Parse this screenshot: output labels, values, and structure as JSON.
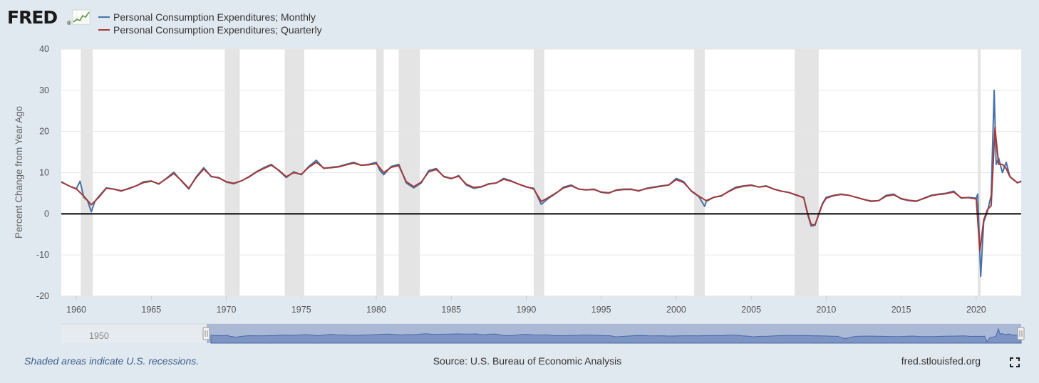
{
  "header": {
    "logo": "FRED",
    "logo_mark": "®"
  },
  "chart_data": {
    "type": "line",
    "ylabel": "Percent Change from Year Ago",
    "ylim": [
      -20,
      40
    ],
    "yticks": [
      -20,
      -10,
      0,
      10,
      20,
      30,
      40
    ],
    "xlim": [
      1959.0,
      2023.0
    ],
    "xticks": [
      1960,
      1965,
      1970,
      1975,
      1980,
      1985,
      1990,
      1995,
      2000,
      2005,
      2010,
      2015,
      2020
    ],
    "zero_line": true,
    "grid": "horizontal",
    "legend_position": "top-left",
    "recessions": [
      [
        1960.3,
        1961.1
      ],
      [
        1969.9,
        1970.9
      ],
      [
        1973.9,
        1975.2
      ],
      [
        1980.0,
        1980.5
      ],
      [
        1981.5,
        1982.9
      ],
      [
        1990.5,
        1991.2
      ],
      [
        2001.2,
        2001.9
      ],
      [
        2007.9,
        2009.5
      ],
      [
        2020.1,
        2020.3
      ]
    ],
    "series": [
      {
        "name": "Personal Consumption Expenditures; Monthly",
        "color": "#4572a7",
        "x": [
          1959.0,
          1959.5,
          1960.0,
          1960.25,
          1960.5,
          1960.75,
          1961.0,
          1961.25,
          1961.5,
          1962.0,
          1962.5,
          1963.0,
          1963.5,
          1964.0,
          1964.5,
          1965.0,
          1965.5,
          1966.0,
          1966.5,
          1967.0,
          1967.5,
          1968.0,
          1968.5,
          1969.0,
          1969.5,
          1970.0,
          1970.5,
          1971.0,
          1971.5,
          1972.0,
          1972.5,
          1973.0,
          1973.5,
          1974.0,
          1974.5,
          1975.0,
          1975.5,
          1976.0,
          1976.5,
          1977.0,
          1977.5,
          1978.0,
          1978.5,
          1979.0,
          1979.5,
          1980.0,
          1980.25,
          1980.5,
          1981.0,
          1981.5,
          1982.0,
          1982.5,
          1983.0,
          1983.5,
          1984.0,
          1984.5,
          1985.0,
          1985.5,
          1986.0,
          1986.5,
          1987.0,
          1987.5,
          1988.0,
          1988.5,
          1989.0,
          1989.5,
          1990.0,
          1990.5,
          1991.0,
          1991.5,
          1992.0,
          1992.5,
          1993.0,
          1993.5,
          1994.0,
          1994.5,
          1995.0,
          1995.5,
          1996.0,
          1996.5,
          1997.0,
          1997.5,
          1998.0,
          1998.5,
          1999.0,
          1999.5,
          2000.0,
          2000.5,
          2001.0,
          2001.5,
          2001.9,
          2002.0,
          2002.5,
          2003.0,
          2003.5,
          2004.0,
          2004.5,
          2005.0,
          2005.5,
          2006.0,
          2006.5,
          2007.0,
          2007.5,
          2008.0,
          2008.5,
          2008.75,
          2009.0,
          2009.25,
          2009.5,
          2009.75,
          2010.0,
          2010.5,
          2011.0,
          2011.5,
          2012.0,
          2012.5,
          2013.0,
          2013.5,
          2014.0,
          2014.5,
          2015.0,
          2015.5,
          2016.0,
          2016.5,
          2017.0,
          2017.5,
          2018.0,
          2018.5,
          2019.0,
          2019.5,
          2020.0,
          2020.1,
          2020.3,
          2020.5,
          2020.75,
          2021.0,
          2021.2,
          2021.33,
          2021.5,
          2021.75,
          2022.0,
          2022.25,
          2022.5,
          2022.75,
          2023.0
        ],
        "values": [
          7.8,
          6.8,
          6.0,
          7.9,
          4.0,
          3.2,
          0.5,
          3.1,
          4.2,
          6.3,
          6.0,
          5.5,
          6.2,
          6.8,
          7.8,
          8.0,
          7.2,
          8.6,
          10.1,
          8.0,
          6.0,
          9.0,
          11.2,
          9.0,
          8.8,
          7.7,
          7.3,
          8.0,
          9.0,
          10.2,
          11.2,
          12.0,
          10.5,
          8.8,
          10.2,
          9.5,
          11.5,
          13.0,
          11.0,
          11.3,
          11.5,
          12.0,
          12.5,
          11.8,
          12.0,
          12.5,
          10.5,
          9.5,
          11.5,
          12.0,
          7.5,
          6.3,
          7.5,
          10.5,
          11.0,
          9.0,
          8.5,
          9.3,
          7.0,
          6.2,
          6.5,
          7.3,
          7.5,
          8.6,
          8.0,
          7.2,
          6.5,
          6.2,
          2.3,
          3.8,
          5.0,
          6.5,
          7.0,
          6.0,
          5.8,
          6.0,
          5.2,
          5.0,
          5.8,
          6.0,
          6.0,
          5.5,
          6.2,
          6.5,
          6.8,
          7.0,
          8.6,
          7.8,
          5.5,
          4.2,
          1.8,
          3.0,
          4.0,
          4.3,
          5.5,
          6.5,
          6.8,
          7.0,
          6.5,
          6.8,
          6.0,
          5.5,
          5.2,
          4.5,
          4.0,
          0.0,
          -3.0,
          -2.8,
          0.0,
          2.5,
          4.0,
          4.5,
          4.8,
          4.5,
          4.0,
          3.5,
          3.0,
          3.2,
          4.5,
          4.8,
          3.6,
          3.2,
          3.0,
          3.8,
          4.5,
          4.8,
          5.0,
          5.5,
          3.8,
          4.0,
          3.8,
          4.8,
          -15.2,
          -2.0,
          0.5,
          4.5,
          30.0,
          12.0,
          13.5,
          10.0,
          12.5,
          9.0,
          8.3,
          7.5,
          8.0
        ]
      },
      {
        "name": "Personal Consumption Expenditures; Quarterly",
        "color": "#a33a3a",
        "x": [
          1959.0,
          1959.5,
          1960.0,
          1960.5,
          1961.0,
          1961.5,
          1962.0,
          1962.5,
          1963.0,
          1963.5,
          1964.0,
          1964.5,
          1965.0,
          1965.5,
          1966.0,
          1966.5,
          1967.0,
          1967.5,
          1968.0,
          1968.5,
          1969.0,
          1969.5,
          1970.0,
          1970.5,
          1971.0,
          1971.5,
          1972.0,
          1972.5,
          1973.0,
          1973.5,
          1974.0,
          1974.5,
          1975.0,
          1975.5,
          1976.0,
          1976.5,
          1977.0,
          1977.5,
          1978.0,
          1978.5,
          1979.0,
          1979.5,
          1980.0,
          1980.5,
          1981.0,
          1981.5,
          1982.0,
          1982.5,
          1983.0,
          1983.5,
          1984.0,
          1984.5,
          1985.0,
          1985.5,
          1986.0,
          1986.5,
          1987.0,
          1987.5,
          1988.0,
          1988.5,
          1989.0,
          1989.5,
          1990.0,
          1990.5,
          1991.0,
          1991.5,
          1992.0,
          1992.5,
          1993.0,
          1993.5,
          1994.0,
          1994.5,
          1995.0,
          1995.5,
          1996.0,
          1996.5,
          1997.0,
          1997.5,
          1998.0,
          1998.5,
          1999.0,
          1999.5,
          2000.0,
          2000.5,
          2001.0,
          2001.5,
          2002.0,
          2002.5,
          2003.0,
          2003.5,
          2004.0,
          2004.5,
          2005.0,
          2005.5,
          2006.0,
          2006.5,
          2007.0,
          2007.5,
          2008.0,
          2008.5,
          2008.75,
          2009.0,
          2009.25,
          2009.5,
          2009.75,
          2010.0,
          2010.5,
          2011.0,
          2011.5,
          2012.0,
          2012.5,
          2013.0,
          2013.5,
          2014.0,
          2014.5,
          2015.0,
          2015.5,
          2016.0,
          2016.5,
          2017.0,
          2017.5,
          2018.0,
          2018.5,
          2019.0,
          2019.5,
          2020.0,
          2020.25,
          2020.5,
          2020.75,
          2021.0,
          2021.25,
          2021.5,
          2021.75,
          2022.0,
          2022.25,
          2022.5,
          2022.75,
          2023.0
        ],
        "values": [
          7.7,
          6.8,
          6.1,
          4.3,
          2.2,
          4.0,
          6.2,
          6.0,
          5.6,
          6.1,
          6.8,
          7.6,
          7.9,
          7.3,
          8.5,
          9.8,
          8.1,
          6.2,
          8.8,
          10.9,
          9.1,
          8.7,
          7.8,
          7.4,
          8.0,
          8.9,
          10.1,
          11.0,
          11.8,
          10.6,
          9.0,
          10.0,
          9.6,
          11.3,
          12.5,
          11.1,
          11.2,
          11.4,
          11.9,
          12.3,
          11.8,
          11.9,
          12.2,
          10.0,
          11.3,
          11.7,
          7.8,
          6.6,
          7.7,
          10.2,
          10.8,
          9.1,
          8.6,
          9.1,
          7.2,
          6.4,
          6.6,
          7.2,
          7.5,
          8.4,
          7.9,
          7.2,
          6.6,
          6.0,
          3.0,
          4.0,
          5.1,
          6.3,
          6.8,
          6.0,
          5.8,
          5.9,
          5.3,
          5.1,
          5.7,
          5.9,
          5.9,
          5.6,
          6.1,
          6.4,
          6.7,
          7.0,
          8.3,
          7.6,
          5.6,
          4.3,
          3.2,
          4.0,
          4.4,
          5.4,
          6.3,
          6.7,
          6.9,
          6.5,
          6.7,
          6.0,
          5.5,
          5.2,
          4.6,
          3.9,
          0.3,
          -2.6,
          -2.7,
          -0.2,
          2.3,
          3.8,
          4.4,
          4.7,
          4.5,
          4.0,
          3.5,
          3.1,
          3.2,
          4.3,
          4.6,
          3.7,
          3.3,
          3.1,
          3.7,
          4.4,
          4.7,
          4.9,
          5.3,
          3.9,
          3.9,
          3.6,
          -9.0,
          -1.5,
          1.0,
          2.0,
          21.0,
          12.0,
          12.0,
          11.0,
          9.0,
          8.2,
          7.6,
          7.8
        ]
      }
    ]
  },
  "navigator": {
    "start_label": "1950"
  },
  "footer": {
    "recession_note": "Shaded areas indicate U.S. recessions.",
    "source": "Source: U.S. Bureau of Economic Analysis",
    "site": "fred.stlouisfed.org"
  }
}
